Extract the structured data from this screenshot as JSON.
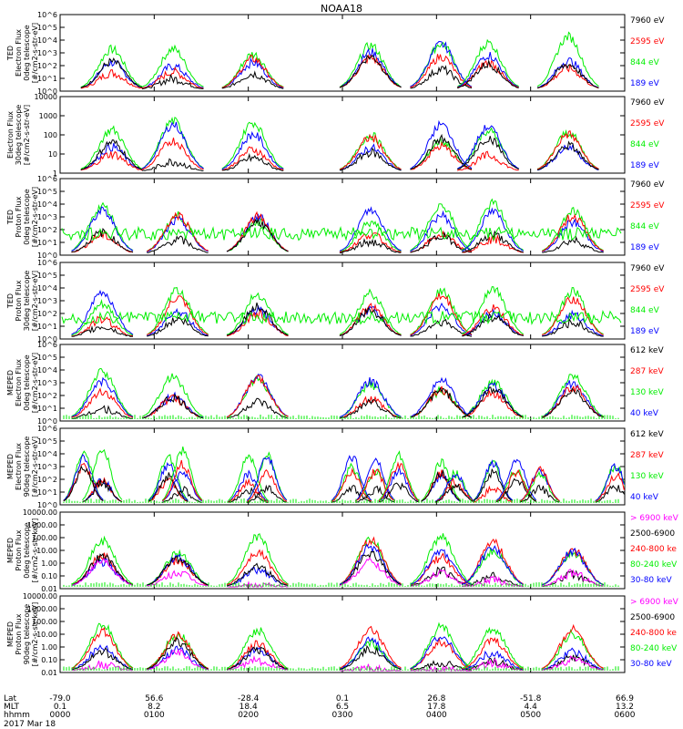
{
  "title": "NOAA18",
  "date_label": "2017 Mar 18",
  "colors": {
    "black": "#000000",
    "red": "#ff0000",
    "green": "#00ee00",
    "blue": "#0000ff",
    "magenta": "#ff00ff"
  },
  "xaxis": {
    "row_labels": [
      "Lat",
      "MLT",
      "hhmm"
    ],
    "columns": [
      {
        "lat": "-79.0",
        "mlt": "0.1",
        "hhmm": "0000"
      },
      {
        "lat": "56.6",
        "mlt": "8.2",
        "hhmm": "0100"
      },
      {
        "lat": "-28.4",
        "mlt": "18.4",
        "hhmm": "0200"
      },
      {
        "lat": "0.1",
        "mlt": "6.5",
        "hhmm": "0300"
      },
      {
        "lat": "26.8",
        "mlt": "17.8",
        "hhmm": "0400"
      },
      {
        "lat": "-51.8",
        "mlt": "4.4",
        "hhmm": "0500"
      },
      {
        "lat": "66.9",
        "mlt": "13.2",
        "hhmm": "0600"
      }
    ]
  },
  "chart_data": [
    {
      "type": "line",
      "ylabel": [
        "TED",
        "Electron Flux",
        "0deg telescope",
        "[#/cm2-s-str-eV]"
      ],
      "scale": "log",
      "ylim": [
        1,
        1000000
      ],
      "ticks": [
        "10^0",
        "10^1",
        "10^2",
        "10^3",
        "10^4",
        "10^5",
        "10^6"
      ],
      "legend": [
        {
          "name": "7960 eV",
          "color": "black"
        },
        {
          "name": "2595 eV",
          "color": "red"
        },
        {
          "name": "844 eV",
          "color": "green"
        },
        {
          "name": "189 eV",
          "color": "blue"
        }
      ],
      "x_hours": [
        0,
        6
      ],
      "bursts": [
        0.55,
        1.2,
        2.05,
        3.3,
        4.05,
        4.55,
        5.4
      ]
    },
    {
      "type": "line",
      "ylabel": [
        "Electron Flux",
        "30deg telescope",
        "[#/cm2-s-str-eV]"
      ],
      "scale": "log",
      "ylim": [
        1,
        10000
      ],
      "ticks": [
        "1",
        "10",
        "100",
        "1000",
        "10000"
      ],
      "legend": [
        {
          "name": "7960 eV",
          "color": "black"
        },
        {
          "name": "2595 eV",
          "color": "red"
        },
        {
          "name": "844 eV",
          "color": "green"
        },
        {
          "name": "189 eV",
          "color": "blue"
        }
      ],
      "x_hours": [
        0,
        6
      ],
      "bursts": [
        0.55,
        1.2,
        2.05,
        3.3,
        4.05,
        4.55,
        5.4
      ]
    },
    {
      "type": "line",
      "ylabel": [
        "TED",
        "Proton Flux",
        "0deg telescope",
        "[#/cm2-s-str-eV]"
      ],
      "scale": "log",
      "ylim": [
        1,
        1000000
      ],
      "ticks": [
        "10^0",
        "10^1",
        "10^2",
        "10^3",
        "10^4",
        "10^5",
        "10^6"
      ],
      "legend": [
        {
          "name": "7960 eV",
          "color": "black"
        },
        {
          "name": "2595 eV",
          "color": "red"
        },
        {
          "name": "844 eV",
          "color": "green"
        },
        {
          "name": "189 eV",
          "color": "blue"
        }
      ],
      "x_hours": [
        0,
        6
      ],
      "bursts": [
        0.45,
        1.25,
        2.1,
        3.3,
        4.05,
        4.6,
        5.45
      ]
    },
    {
      "type": "line",
      "ylabel": [
        "TED",
        "Proton Flux",
        "30deg telescope",
        "[#/cm2-s-str-eV]"
      ],
      "scale": "log",
      "ylim": [
        1,
        1000000
      ],
      "ticks": [
        "10^0",
        "10^1",
        "10^2",
        "10^3",
        "10^4",
        "10^5",
        "10^6"
      ],
      "legend": [
        {
          "name": "7960 eV",
          "color": "black"
        },
        {
          "name": "2595 eV",
          "color": "red"
        },
        {
          "name": "844 eV",
          "color": "green"
        },
        {
          "name": "189 eV",
          "color": "blue"
        }
      ],
      "x_hours": [
        0,
        6
      ],
      "bursts": [
        0.45,
        1.25,
        2.1,
        3.3,
        4.05,
        4.6,
        5.45
      ]
    },
    {
      "type": "line",
      "ylabel": [
        "MEPED",
        "Electron Flux",
        "0deg telescope",
        "[#/cm2-s-str-eV]"
      ],
      "scale": "log",
      "ylim": [
        1,
        1000000
      ],
      "ticks": [
        "10^0",
        "10^1",
        "10^2",
        "10^3",
        "10^4",
        "10^5",
        "10^6"
      ],
      "legend": [
        {
          "name": "612 keV",
          "color": "black"
        },
        {
          "name": "287 keV",
          "color": "red"
        },
        {
          "name": "130 keV",
          "color": "green"
        },
        {
          "name": "40 keV",
          "color": "blue"
        }
      ],
      "x_hours": [
        0,
        6
      ],
      "bursts": [
        0.45,
        1.2,
        2.1,
        3.3,
        4.05,
        4.6,
        5.45
      ]
    },
    {
      "type": "line",
      "ylabel": [
        "MEPED",
        "Electron Flux",
        "90deg telescope",
        "[#/cm2-s-str-eV]"
      ],
      "scale": "log",
      "ylim": [
        1,
        1000000
      ],
      "ticks": [
        "10^0",
        "10^1",
        "10^2",
        "10^3",
        "10^4",
        "10^5",
        "10^6"
      ],
      "legend": [
        {
          "name": "612 keV",
          "color": "black"
        },
        {
          "name": "287 keV",
          "color": "red"
        },
        {
          "name": "130 keV",
          "color": "green"
        },
        {
          "name": "40 keV",
          "color": "blue"
        }
      ],
      "x_hours": [
        0,
        6
      ],
      "bursts": [
        0.25,
        0.45,
        1.15,
        1.3,
        2.0,
        2.2,
        3.1,
        3.35,
        3.6,
        4.05,
        4.2,
        4.6,
        4.85,
        5.1,
        5.9
      ]
    },
    {
      "type": "line",
      "ylabel": [
        "MEPED",
        "Proton Flux",
        "0deg telescope",
        "[#/cm2-s-str-keV]"
      ],
      "scale": "log",
      "ylim": [
        0.01,
        10000
      ],
      "ticks": [
        "0.01",
        "0.10",
        "1.00",
        "10.00",
        "100.00",
        "1000.00",
        "10000.00"
      ],
      "legend": [
        {
          "name": "> 6900 keV",
          "color": "magenta"
        },
        {
          "name": "2500-6900",
          "color": "black"
        },
        {
          "name": "240-800 ke",
          "color": "red"
        },
        {
          "name": "80-240 keV",
          "color": "green"
        },
        {
          "name": "30-80 keV",
          "color": "blue"
        }
      ],
      "x_hours": [
        0,
        6
      ],
      "bursts": [
        0.45,
        1.25,
        2.1,
        3.3,
        4.05,
        4.6,
        5.45
      ]
    },
    {
      "type": "line",
      "ylabel": [
        "MEPED",
        "Proton Flux",
        "90deg telescope",
        "[#/cm2-s-str-keV]"
      ],
      "scale": "log",
      "ylim": [
        0.01,
        10000
      ],
      "ticks": [
        "0.01",
        "0.10",
        "1.00",
        "10.00",
        "100.00",
        "1000.00",
        "10000.00"
      ],
      "legend": [
        {
          "name": "> 6900 keV",
          "color": "magenta"
        },
        {
          "name": "2500-6900",
          "color": "black"
        },
        {
          "name": "240-800 ke",
          "color": "red"
        },
        {
          "name": "80-240 keV",
          "color": "green"
        },
        {
          "name": "30-80 keV",
          "color": "blue"
        }
      ],
      "x_hours": [
        0,
        6
      ],
      "bursts": [
        0.45,
        1.25,
        2.1,
        3.3,
        4.05,
        4.6,
        5.45
      ]
    }
  ]
}
